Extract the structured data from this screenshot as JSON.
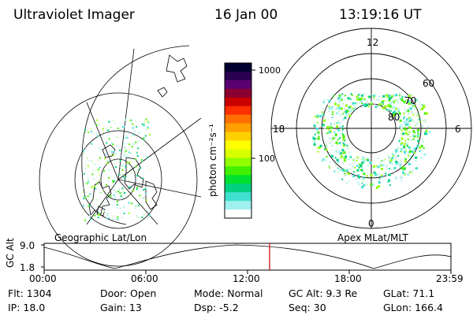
{
  "header": {
    "instrument": "Ultraviolet Imager",
    "date": "16 Jan 00",
    "time": "13:19:16 UT"
  },
  "geographic_panel": {
    "label": "Geographic Lat/Lon"
  },
  "colorbar": {
    "unit_label": "photon cm⁻²s⁻¹",
    "ticks": [
      {
        "value": 1000,
        "label": "1000"
      },
      {
        "value": 100,
        "label": "100"
      }
    ],
    "colors_top_to_bottom": [
      "#000030",
      "#2a0050",
      "#5a0070",
      "#8a0030",
      "#c80000",
      "#ff3000",
      "#ff7000",
      "#ffa000",
      "#ffd000",
      "#ffff00",
      "#d8ff00",
      "#90ff00",
      "#40f000",
      "#00e030",
      "#00d080",
      "#40e0d0",
      "#a0f0f0",
      "#ffffff"
    ]
  },
  "polar_panel": {
    "label": "Apex MLat/MLT",
    "mlt_labels": {
      "top": "12",
      "bottom": "0",
      "left": "18",
      "right": "6"
    },
    "lat_labels": [
      "60",
      "70",
      "80"
    ]
  },
  "timeline": {
    "axis_label": "GC Alt",
    "y_ticks": [
      "9.0",
      "1.8"
    ],
    "x_ticks": [
      "00:00",
      "06:00",
      "12:00",
      "18:00",
      "23:59"
    ],
    "current_time_marker": "13:19",
    "marker_color": "#cc0000"
  },
  "info": {
    "row1": [
      "Flt: 1304",
      "Door: Open",
      "Mode: Normal",
      "GC Alt: 9.3 Re",
      "GLat:  71.1"
    ],
    "row2": [
      "IP: 18.0",
      "Gain: 13",
      "Dsp:   -5.2",
      "Seq: 30",
      "GLon: 166.4"
    ]
  }
}
